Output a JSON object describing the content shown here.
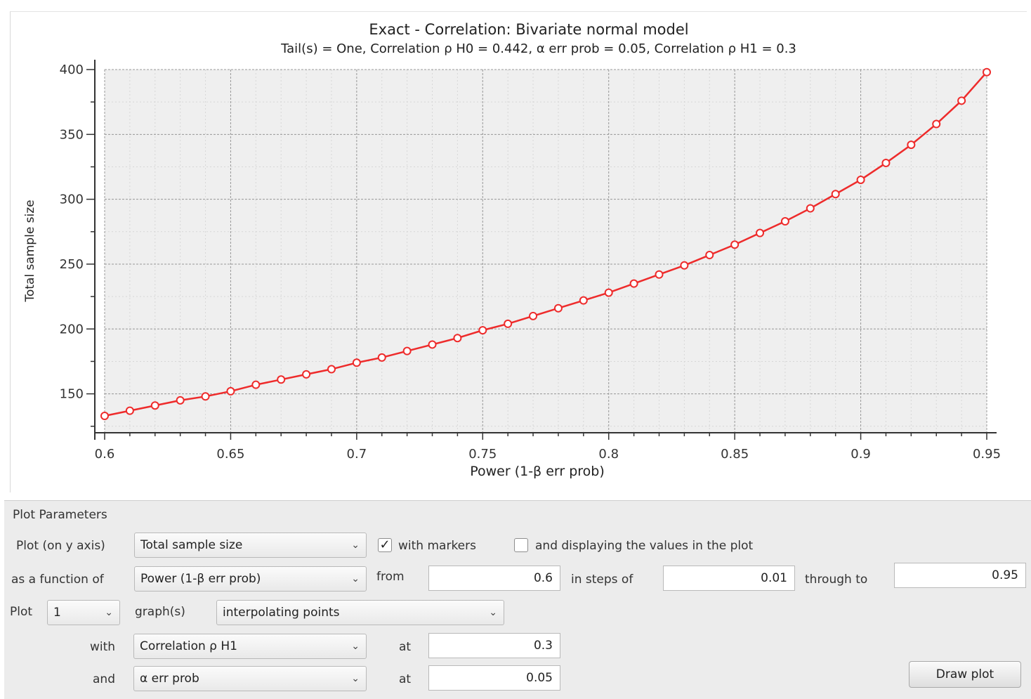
{
  "chart_data": {
    "type": "line",
    "title": "Exact - Correlation: Bivariate normal model",
    "subtitle": "Tail(s) = One, Correlation ρ H0 = 0.442, α err prob = 0.05, Correlation ρ H1 = 0.3",
    "xlabel": "Power (1-β err prob)",
    "ylabel": "Total sample size",
    "xlim": [
      0.6,
      0.95
    ],
    "ylim": [
      120,
      400
    ],
    "xticks": [
      0.6,
      0.65,
      0.7,
      0.75,
      0.8,
      0.85,
      0.9,
      0.95
    ],
    "xtick_labels": [
      "0.6",
      "0.65",
      "0.7",
      "0.75",
      "0.8",
      "0.85",
      "0.9",
      "0.95"
    ],
    "yticks": [
      150,
      200,
      250,
      300,
      350,
      400
    ],
    "ytick_labels": [
      "150",
      "200",
      "250",
      "300",
      "350",
      "400"
    ],
    "grid": true,
    "markers": true,
    "line_color": "#ee2b2b",
    "x": [
      0.6,
      0.61,
      0.62,
      0.63,
      0.64,
      0.65,
      0.66,
      0.67,
      0.68,
      0.69,
      0.7,
      0.71,
      0.72,
      0.73,
      0.74,
      0.75,
      0.76,
      0.77,
      0.78,
      0.79,
      0.8,
      0.81,
      0.82,
      0.83,
      0.84,
      0.85,
      0.86,
      0.87,
      0.88,
      0.89,
      0.9,
      0.91,
      0.92,
      0.93,
      0.94,
      0.95
    ],
    "y": [
      133,
      137,
      141,
      145,
      148,
      152,
      157,
      161,
      165,
      169,
      174,
      178,
      183,
      188,
      193,
      199,
      204,
      210,
      216,
      222,
      228,
      235,
      242,
      249,
      257,
      265,
      274,
      283,
      293,
      304,
      315,
      328,
      342,
      358,
      376,
      398
    ]
  },
  "params": {
    "section_title": "Plot Parameters",
    "plot_on_y_label": "Plot (on y axis)",
    "y_axis_value": "Total sample size",
    "with_markers_label": "with markers",
    "with_markers_checked": true,
    "display_values_label": "and displaying the values in the plot",
    "display_values_checked": false,
    "function_of_label": "as a function of",
    "function_of_value": "Power (1-β err prob)",
    "from_label": "from",
    "from_value": "0.6",
    "steps_label": "in steps of",
    "steps_value": "0.01",
    "through_label": "through to",
    "through_value": "0.95",
    "plot_label": "Plot",
    "plot_count": "1",
    "graphs_label": "graph(s)",
    "graph_mode": "interpolating points",
    "with_label": "with",
    "with_value": "Correlation ρ H1",
    "at_label": "at",
    "with_at_value": "0.3",
    "and_label": "and",
    "and_value": "α err prob",
    "and_at_value": "0.05",
    "draw_button": "Draw plot"
  }
}
